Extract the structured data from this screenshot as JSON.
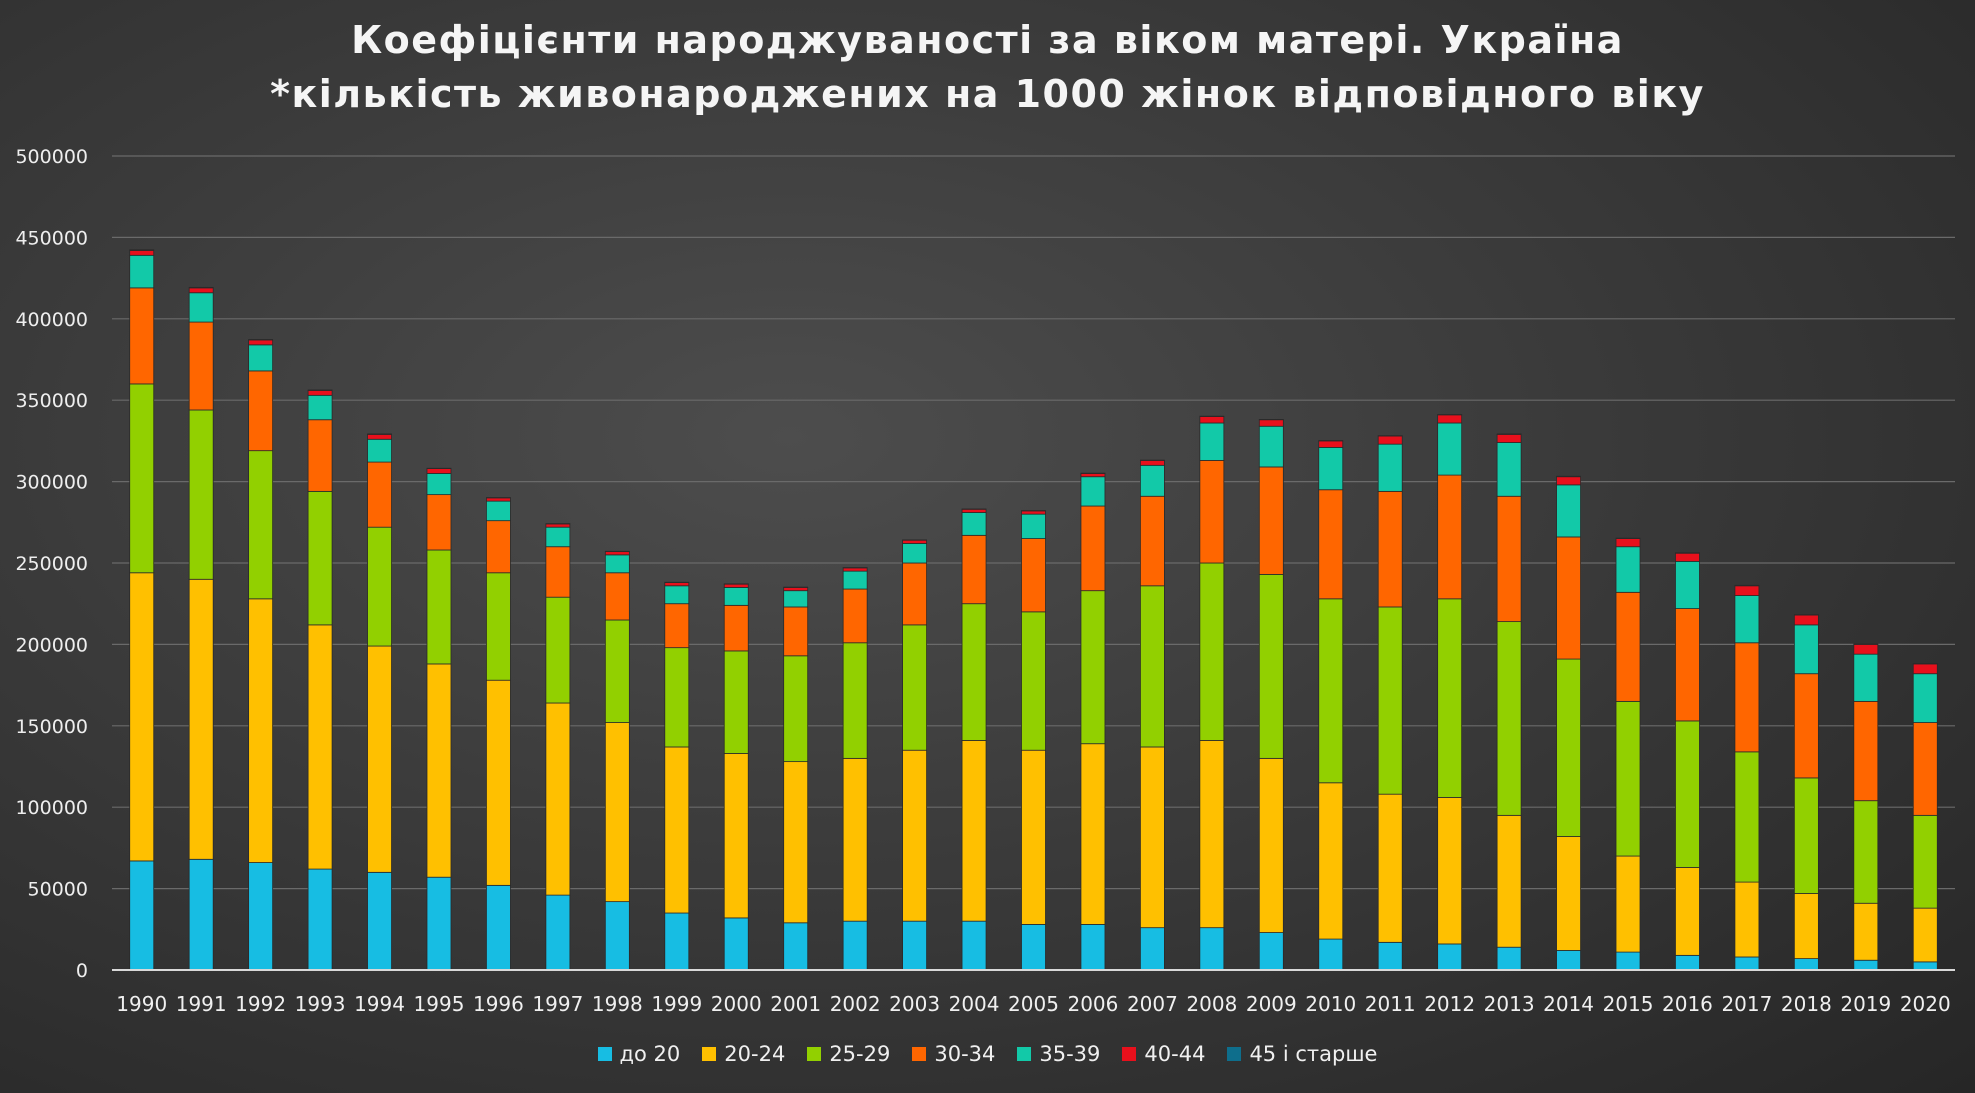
{
  "chart_data": {
    "type": "bar",
    "stacked": true,
    "title": "Коефіцієнти народжуваності за віком матері. Україна",
    "subtitle": "*кількість живонароджених на 1000 жінок відповідного віку",
    "categories": [
      "1990",
      "1991",
      "1992",
      "1993",
      "1994",
      "1995",
      "1996",
      "1997",
      "1998",
      "1999",
      "2000",
      "2001",
      "2002",
      "2003",
      "2004",
      "2005",
      "2006",
      "2007",
      "2008",
      "2009",
      "2010",
      "2011",
      "2012",
      "2013",
      "2014",
      "2015",
      "2016",
      "2017",
      "2018",
      "2019",
      "2020"
    ],
    "ylim": [
      0,
      500000
    ],
    "yticks": [
      0,
      50000,
      100000,
      150000,
      200000,
      250000,
      300000,
      350000,
      400000,
      450000,
      500000
    ],
    "ytick_labels": [
      "0",
      "50000",
      "100000",
      "150000",
      "200000",
      "250000",
      "300000",
      "350000",
      "400000",
      "450000",
      "500000"
    ],
    "grid": true,
    "legend_position": "bottom",
    "series": [
      {
        "name": "до 20",
        "color": "#17bde3",
        "values": [
          67000,
          68000,
          66000,
          62000,
          60000,
          57000,
          52000,
          46000,
          42000,
          35000,
          32000,
          29000,
          30000,
          30000,
          30000,
          28000,
          28000,
          26000,
          26000,
          23000,
          19000,
          17000,
          16000,
          14000,
          12000,
          11000,
          9000,
          8000,
          7000,
          6000,
          5000
        ]
      },
      {
        "name": "20-24",
        "color": "#ffc000",
        "values": [
          177000,
          172000,
          162000,
          150000,
          139000,
          131000,
          126000,
          118000,
          110000,
          102000,
          101000,
          99000,
          100000,
          105000,
          111000,
          107000,
          111000,
          111000,
          115000,
          107000,
          96000,
          91000,
          90000,
          81000,
          70000,
          59000,
          54000,
          46000,
          40000,
          35000,
          33000
        ]
      },
      {
        "name": "25-29",
        "color": "#92d000",
        "values": [
          116000,
          104000,
          91000,
          82000,
          73000,
          70000,
          66000,
          65000,
          63000,
          61000,
          63000,
          65000,
          71000,
          77000,
          84000,
          85000,
          94000,
          99000,
          109000,
          113000,
          113000,
          115000,
          122000,
          119000,
          109000,
          95000,
          90000,
          80000,
          71000,
          63000,
          57000
        ]
      },
      {
        "name": "30-34",
        "color": "#ff6600",
        "values": [
          59000,
          54000,
          49000,
          44000,
          40000,
          34000,
          32000,
          31000,
          29000,
          27000,
          28000,
          30000,
          33000,
          38000,
          42000,
          45000,
          52000,
          55000,
          63000,
          66000,
          67000,
          71000,
          76000,
          77000,
          75000,
          67000,
          69000,
          67000,
          64000,
          61000,
          57000
        ]
      },
      {
        "name": "35-39",
        "color": "#12c9a8",
        "values": [
          20000,
          18000,
          16000,
          15000,
          14000,
          13000,
          12000,
          12000,
          11000,
          11000,
          11000,
          10000,
          11000,
          12000,
          14000,
          15000,
          18000,
          19000,
          23000,
          25000,
          26000,
          29000,
          32000,
          33000,
          32000,
          28000,
          29000,
          29000,
          30000,
          29000,
          30000
        ]
      },
      {
        "name": "40-44",
        "color": "#e8101c",
        "values": [
          3000,
          3000,
          3000,
          3000,
          3000,
          3000,
          2000,
          2000,
          2000,
          2000,
          2000,
          2000,
          2000,
          2000,
          2000,
          2000,
          2000,
          3000,
          4000,
          4000,
          4000,
          5000,
          5000,
          5000,
          5000,
          5000,
          5000,
          6000,
          6000,
          6000,
          6000
        ]
      },
      {
        "name": "45 і старше",
        "color": "#0e6e8c",
        "values": [
          400,
          300,
          300,
          300,
          300,
          200,
          200,
          200,
          200,
          200,
          200,
          200,
          200,
          200,
          200,
          200,
          200,
          200,
          200,
          200,
          200,
          200,
          200,
          300,
          300,
          300,
          300,
          300,
          300,
          300,
          300
        ]
      }
    ]
  }
}
